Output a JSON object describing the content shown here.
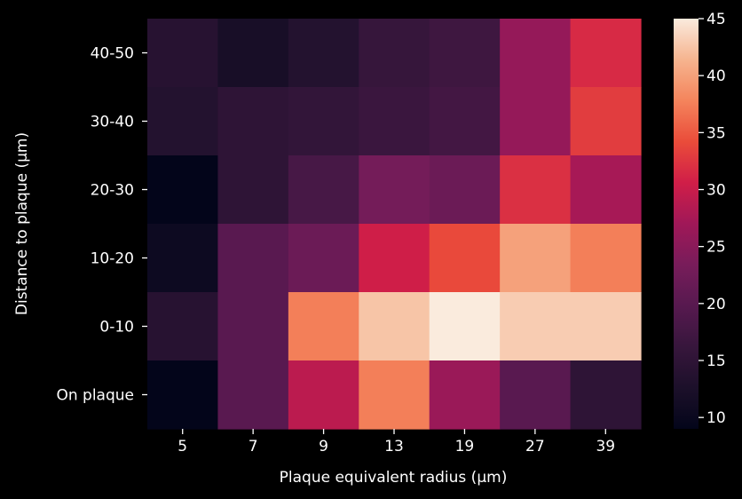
{
  "chart_data": {
    "type": "heatmap",
    "title": "",
    "xlabel": "Plaque equivalent radius (µm)",
    "ylabel": "Distance to plaque (µm)",
    "x_categories": [
      "5",
      "7",
      "9",
      "13",
      "19",
      "27",
      "39"
    ],
    "y_categories": [
      "40-50",
      "30-40",
      "20-30",
      "10-20",
      "0-10",
      "On plaque"
    ],
    "values": [
      [
        14.0,
        12.0,
        13.5,
        16.0,
        17.0,
        26.0,
        31.5
      ],
      [
        13.5,
        15.0,
        15.5,
        16.5,
        17.5,
        26.0,
        33.0
      ],
      [
        9.0,
        15.0,
        18.0,
        23.0,
        22.0,
        32.0,
        27.5
      ],
      [
        10.5,
        20.0,
        22.0,
        30.5,
        34.0,
        40.0,
        37.5
      ],
      [
        14.0,
        20.0,
        37.5,
        42.5,
        45.0,
        43.0,
        43.0
      ],
      [
        9.0,
        20.0,
        29.0,
        37.5,
        26.5,
        20.0,
        15.0
      ]
    ],
    "colorbar": {
      "min": 9,
      "max": 45,
      "ticks": [
        10,
        15,
        20,
        25,
        30,
        35,
        40,
        45
      ],
      "colormap": "rocket"
    },
    "grid": false,
    "background": "#000000",
    "text_color": "#ffffff"
  }
}
